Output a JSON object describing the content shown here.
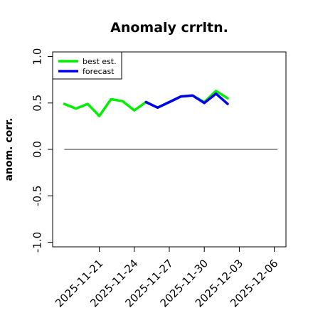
{
  "chart_data": {
    "type": "line",
    "title": "Anomaly crrltn.",
    "ylabel": "anom. corr.",
    "xlabel": "",
    "ylim": [
      -1.05,
      1.05
    ],
    "xlim": [
      "2025-11-17",
      "2025-12-07"
    ],
    "y_ticks": [
      {
        "value": 1.0,
        "label": "1.0"
      },
      {
        "value": 0.5,
        "label": "0.5"
      },
      {
        "value": 0.0,
        "label": "0.0"
      },
      {
        "value": -0.5,
        "label": "-0.5"
      },
      {
        "value": -1.0,
        "label": "-1.0"
      }
    ],
    "x_ticks": [
      {
        "value": "2025-11-21",
        "label": "2025-11-21",
        "color": "#000000"
      },
      {
        "value": "2025-11-24",
        "label": "2025-11-24",
        "color": "#000000"
      },
      {
        "value": "2025-11-27",
        "label": "2025-11-27",
        "color": "#2e8b2e"
      },
      {
        "value": "2025-11-30",
        "label": "2025-11-30",
        "color": "#000000"
      },
      {
        "value": "2025-12-03",
        "label": "2025-12-03",
        "color": "#000000"
      },
      {
        "value": "2025-12-06",
        "label": "2025-12-06",
        "color": "#000000"
      }
    ],
    "reference_line": {
      "y": 0.0,
      "color": "#555555"
    },
    "legend": {
      "position": "top-left"
    },
    "series": [
      {
        "name": "best est.",
        "color": "#00ee00",
        "points": [
          {
            "x": "2025-11-18",
            "y": 0.49
          },
          {
            "x": "2025-11-19",
            "y": 0.44
          },
          {
            "x": "2025-11-20",
            "y": 0.49
          },
          {
            "x": "2025-11-21",
            "y": 0.36
          },
          {
            "x": "2025-11-22",
            "y": 0.54
          },
          {
            "x": "2025-11-23",
            "y": 0.52
          },
          {
            "x": "2025-11-24",
            "y": 0.42
          },
          {
            "x": "2025-11-25",
            "y": 0.51
          },
          {
            "x": "2025-11-26",
            "y": 0.45
          },
          {
            "x": "2025-11-27",
            "y": 0.51
          },
          {
            "x": "2025-11-28",
            "y": 0.57
          },
          {
            "x": "2025-11-29",
            "y": 0.58
          },
          {
            "x": "2025-11-30",
            "y": 0.51
          },
          {
            "x": "2025-12-01",
            "y": 0.63
          },
          {
            "x": "2025-12-02",
            "y": 0.55
          }
        ]
      },
      {
        "name": "forecast",
        "color": "#0000ee",
        "points": [
          {
            "x": "2025-11-25",
            "y": 0.51
          },
          {
            "x": "2025-11-26",
            "y": 0.45
          },
          {
            "x": "2025-11-27",
            "y": 0.51
          },
          {
            "x": "2025-11-28",
            "y": 0.57
          },
          {
            "x": "2025-11-29",
            "y": 0.58
          },
          {
            "x": "2025-11-30",
            "y": 0.5
          },
          {
            "x": "2025-12-01",
            "y": 0.6
          },
          {
            "x": "2025-12-02",
            "y": 0.49
          }
        ]
      }
    ]
  }
}
